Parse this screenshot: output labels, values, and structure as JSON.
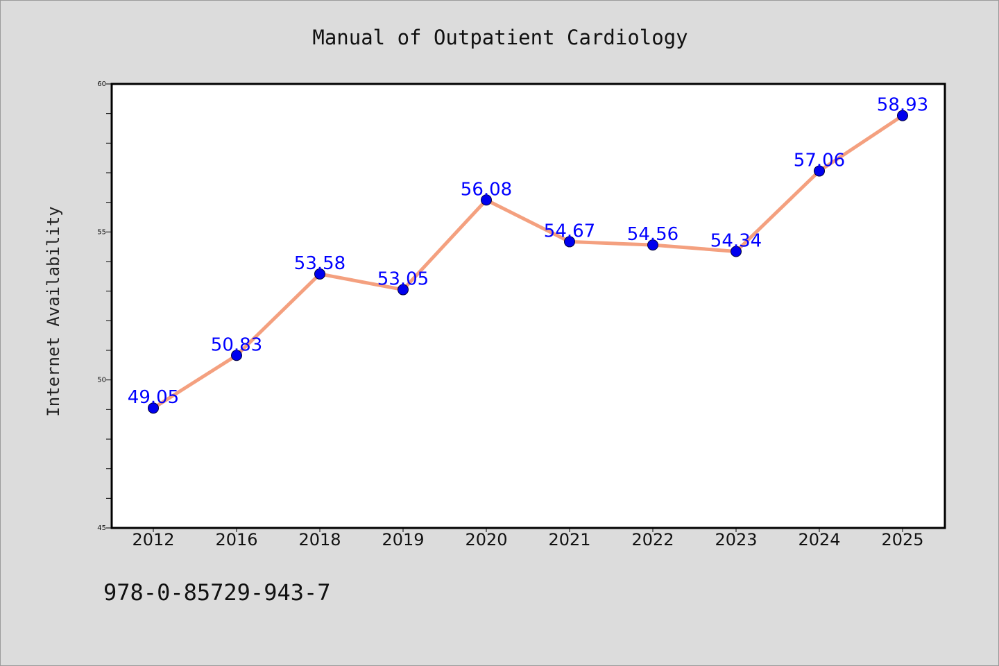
{
  "chart_data": {
    "type": "line",
    "title": "Manual of Outpatient Cardiology",
    "ylabel": "Internet Availability",
    "xlabel": "",
    "categories": [
      "2012",
      "2016",
      "2018",
      "2019",
      "2020",
      "2021",
      "2022",
      "2023",
      "2024",
      "2025"
    ],
    "values": [
      49.05,
      50.83,
      53.58,
      53.05,
      56.08,
      54.67,
      54.56,
      54.34,
      57.06,
      58.93
    ],
    "data_labels": [
      "49.05",
      "50.83",
      "53.58",
      "53.05",
      "56.08",
      "54.67",
      "54.56",
      "54.34",
      "57.06",
      "58.93"
    ],
    "ylim": [
      45,
      60
    ],
    "yticks": [
      45,
      50,
      55,
      60
    ],
    "ytick_labels": [
      "45",
      "50",
      "55",
      "60"
    ],
    "y_minor_step": 1,
    "grid": false,
    "legend": "none",
    "colors": {
      "line": "#f4a07f",
      "marker": "#0000ee",
      "label": "#0000ff",
      "background": "#dcdcdc",
      "plot_background": "#ffffff"
    }
  },
  "footer": {
    "text": "978-0-85729-943-7"
  }
}
